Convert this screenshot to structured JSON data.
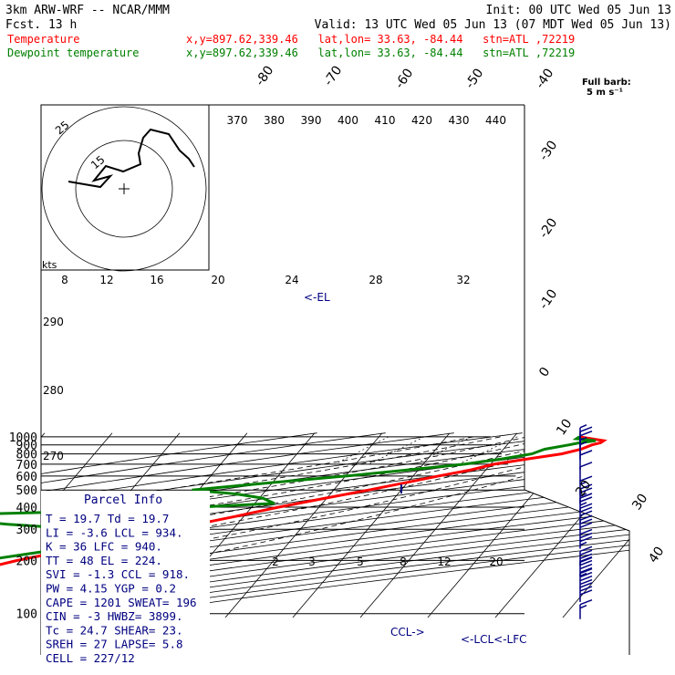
{
  "header": {
    "model": "3km ARW-WRF -- NCAR/MMM",
    "init": "Init: 00 UTC Wed 05 Jun 13",
    "fcst": "Fcst.   13 h",
    "valid": "Valid: 13 UTC Wed 05 Jun 13 (07 MDT Wed 05 Jun 13)"
  },
  "colors": {
    "temperature": "#ff0000",
    "dewpoint": "#008000",
    "parcel": "#000080",
    "grid": "#000000"
  },
  "legend": [
    {
      "label": "Temperature",
      "info": "x,y=897.62,339.46   lat,lon= 33.63, -84.44   stn=ATL ,72219",
      "color": "#ff0000"
    },
    {
      "label": "Dewpoint temperature",
      "info": "x,y=897.62,339.46   lat,lon= 33.63, -84.44   stn=ATL ,72219",
      "color": "#008000"
    }
  ],
  "barb_legend": {
    "line1": "Full barb:",
    "line2": "5 m s⁻¹"
  },
  "hodograph": {
    "unit": "kts",
    "ring_labels": [
      "25",
      "15"
    ]
  },
  "parcel_info": {
    "title": "Parcel Info",
    "rows": [
      "T  =    19.7  Td =  19.7",
      "LI =    -3.6  LCL =  934.",
      "K  =      36  LFC =  940.",
      "TT =      48  EL  =  224.",
      "SVI =   -1.3  CCL =  918.",
      "PW =    4.15  YGP =   0.2",
      "CAPE =  1201  SWEAT=  196",
      "CIN  =    -3  HWBZ= 3899.",
      "Tc =    24.7  SHEAR=  23.",
      "SREH =    27  LAPSE=  5.8",
      "CELL = 227/12"
    ]
  },
  "annotations": {
    "el": "<-EL",
    "lcl": "<-LCL",
    "lfc": "<-LFC",
    "ccl": "CCL->",
    "lcl_lfc": "<-LCL<-LFC"
  },
  "chart_data": {
    "type": "line",
    "title": "",
    "xlabel": "",
    "ylabel": "",
    "pressure_levels": [
      1000,
      900,
      800,
      700,
      600,
      500,
      400,
      300,
      200,
      100
    ],
    "isotherm_labels": [
      -80,
      -70,
      -60,
      -50,
      -40,
      -30,
      -20,
      -10,
      0,
      10,
      20,
      30,
      40
    ],
    "theta_labels": [
      370,
      380,
      390,
      400,
      410,
      420,
      430,
      440
    ],
    "theta_left_labels": [
      290,
      280,
      270
    ],
    "hodo_speed_labels": [
      8,
      12,
      16,
      20,
      24,
      28,
      32
    ],
    "mixing_ratio_labels": [
      2,
      3,
      5,
      8,
      12,
      20
    ],
    "series": [
      {
        "name": "Temperature",
        "p": [
          1000,
          950,
          925,
          900,
          850,
          800,
          750,
          700,
          650,
          600,
          550,
          500,
          450,
          400,
          350,
          300,
          250,
          200,
          175,
          150,
          125,
          100
        ],
        "t": [
          19.7,
          23.8,
          23.6,
          22.6,
          21.5,
          19.2,
          14.8,
          10.5,
          7.8,
          3.8,
          -0.3,
          -4.8,
          -10.2,
          -16.0,
          -21.8,
          -29.0,
          -37.5,
          -48.0,
          -53.0,
          -57.0,
          -61.0,
          -64.0
        ]
      },
      {
        "name": "Dewpoint temperature",
        "p": [
          1000,
          975,
          950,
          925,
          900,
          850,
          800,
          750,
          700,
          650,
          600,
          550,
          500,
          475,
          450,
          420,
          400,
          375,
          360,
          340,
          320,
          300,
          275,
          250,
          225,
          200,
          175,
          150,
          125,
          100
        ],
        "td": [
          19.7,
          19.5,
          22.6,
          20.5,
          19.2,
          16.1,
          14.8,
          11.0,
          6.1,
          -1.5,
          -9.8,
          -20.3,
          -31.0,
          -24.0,
          -19.5,
          -17.1,
          -28.0,
          -48.0,
          -67.0,
          -62.0,
          -54.0,
          -42.0,
          -38.0,
          -40.0,
          -45.0,
          -53.0,
          -64.0,
          -76.0,
          -78.0,
          -75.0
        ]
      }
    ],
    "wind_barbs_kt": [
      {
        "p": 100,
        "speed": 15
      },
      {
        "p": 125,
        "speed": 30
      },
      {
        "p": 150,
        "speed": 40
      },
      {
        "p": 175,
        "speed": 45
      },
      {
        "p": 200,
        "speed": 40
      },
      {
        "p": 250,
        "speed": 35
      },
      {
        "p": 300,
        "speed": 30
      },
      {
        "p": 350,
        "speed": 30
      },
      {
        "p": 400,
        "speed": 25
      },
      {
        "p": 450,
        "speed": 25
      },
      {
        "p": 500,
        "speed": 15
      },
      {
        "p": 600,
        "speed": 10
      },
      {
        "p": 700,
        "speed": 10
      },
      {
        "p": 800,
        "speed": 5
      },
      {
        "p": 850,
        "speed": 5
      },
      {
        "p": 900,
        "speed": 10
      },
      {
        "p": 950,
        "speed": 10
      },
      {
        "p": 1000,
        "speed": 5
      }
    ]
  }
}
